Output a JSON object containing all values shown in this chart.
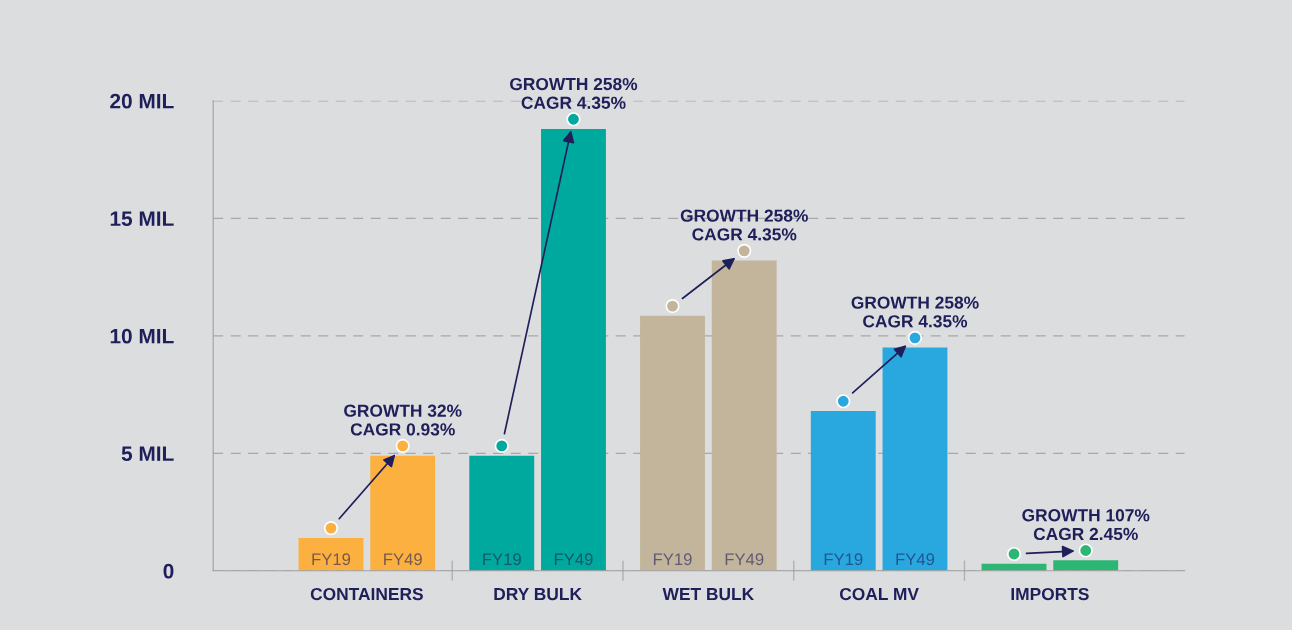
{
  "chart_data": {
    "type": "bar",
    "categories": [
      "CONTAINERS",
      "DRY BULK",
      "WET BULK",
      "COAL MV",
      "IMPORTS"
    ],
    "series": [
      {
        "name": "FY19",
        "colors": [
          "#fbb040",
          "#00a99d",
          "#c2b59b",
          "#29a8e0",
          "#2bb673"
        ],
        "values": [
          1.4,
          4.9,
          10.85,
          6.8,
          0.3
        ]
      },
      {
        "name": "FY49",
        "colors": [
          "#fbb040",
          "#00a99d",
          "#c2b59b",
          "#29a8e0",
          "#2bb673"
        ],
        "values": [
          4.9,
          18.8,
          13.2,
          9.5,
          0.45
        ]
      }
    ],
    "ylim": [
      0,
      20
    ],
    "yticks": [
      {
        "value": 0,
        "label": "0"
      },
      {
        "value": 5,
        "label": "5 MIL"
      },
      {
        "value": 10,
        "label": "10 MIL"
      },
      {
        "value": 15,
        "label": "15 MIL"
      },
      {
        "value": 20,
        "label": "20 MIL"
      }
    ],
    "grid": "y",
    "legend": false,
    "annotations": [
      {
        "text": "GROWTH 32%\nCAGR 0.93%",
        "x": "CONTAINERS",
        "y": 4.9
      },
      {
        "text": "GROWTH 258%\nCAGR 4.35%",
        "x": "DRY BULK",
        "y": 18.8
      },
      {
        "text": "GROWTH 258%\nCAGR 4.35%",
        "x": "WET BULK",
        "y": 13.2
      },
      {
        "text": "GROWTH 258%\nCAGR 4.35%",
        "x": "COAL MV",
        "y": 9.5
      },
      {
        "text": "GROWTH 107%\nCAGR 2.45%",
        "x": "IMPORTS",
        "y": 0.45
      }
    ]
  }
}
